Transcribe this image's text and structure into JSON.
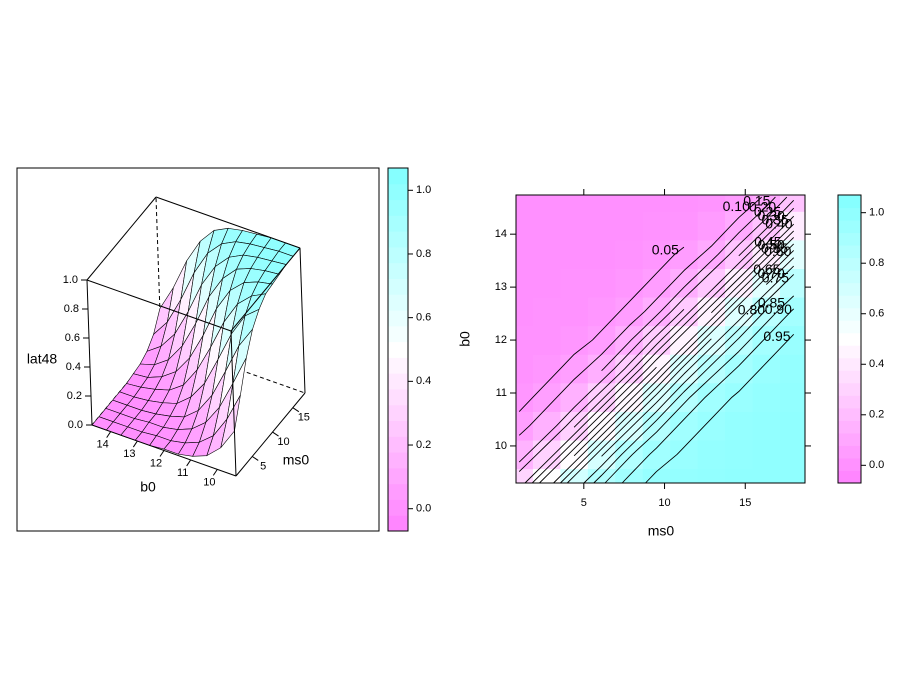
{
  "chart_data": [
    {
      "type": "wireframe",
      "xlabel": "ms0",
      "ylabel": "b0",
      "zlabel": "lat48",
      "x": [
        1,
        2.7,
        4.4,
        6.1,
        7.8,
        9.5,
        11.2,
        12.9,
        14.6,
        16.3,
        18
      ],
      "y": [
        9.3,
        9.84,
        10.38,
        10.92,
        11.46,
        12,
        12.54,
        13.08,
        13.62,
        14.16,
        14.7
      ],
      "z": [
        [
          0.31,
          0.5,
          0.7,
          0.84,
          0.92,
          0.97,
          0.98,
          0.99,
          1.0,
          1.0,
          1.0
        ],
        [
          0.16,
          0.3,
          0.49,
          0.69,
          0.84,
          0.92,
          0.96,
          0.98,
          0.99,
          1.0,
          1.0
        ],
        [
          0.07,
          0.15,
          0.29,
          0.48,
          0.68,
          0.83,
          0.92,
          0.96,
          0.98,
          0.99,
          1.0
        ],
        [
          0.03,
          0.07,
          0.15,
          0.28,
          0.47,
          0.67,
          0.83,
          0.92,
          0.96,
          0.98,
          0.99
        ],
        [
          0.01,
          0.03,
          0.07,
          0.14,
          0.27,
          0.46,
          0.67,
          0.82,
          0.91,
          0.96,
          0.98
        ],
        [
          0.01,
          0.01,
          0.03,
          0.06,
          0.14,
          0.27,
          0.45,
          0.66,
          0.81,
          0.91,
          0.96
        ],
        [
          0.0,
          0.01,
          0.01,
          0.03,
          0.06,
          0.13,
          0.26,
          0.44,
          0.65,
          0.81,
          0.91
        ],
        [
          0.0,
          0.0,
          0.01,
          0.01,
          0.03,
          0.06,
          0.13,
          0.25,
          0.43,
          0.64,
          0.8
        ],
        [
          0.0,
          0.0,
          0.0,
          0.0,
          0.01,
          0.03,
          0.06,
          0.12,
          0.24,
          0.42,
          0.63
        ],
        [
          0.0,
          0.0,
          0.0,
          0.0,
          0.0,
          0.01,
          0.02,
          0.05,
          0.12,
          0.23,
          0.41
        ],
        [
          0.0,
          0.0,
          0.0,
          0.0,
          0.0,
          0.0,
          0.01,
          0.02,
          0.05,
          0.11,
          0.23
        ]
      ],
      "xlim": [
        1,
        18
      ],
      "ylim": [
        9.3,
        14.7
      ],
      "zlim": [
        0,
        1
      ],
      "xticks": [
        5,
        10,
        15
      ],
      "yticks": [
        10,
        11,
        12,
        13,
        14
      ],
      "zticks": [
        {
          "value": 0,
          "label": "0.0"
        },
        0.2,
        0.4,
        0.6,
        0.8,
        {
          "value": 1,
          "label": "1.0"
        }
      ],
      "colors": [
        "#ff80ff",
        "#ffffff",
        "#80ffff"
      ],
      "colorkey": {
        "lim": [
          -0.07,
          1.07
        ],
        "ticks": [
          {
            "value": 0,
            "label": "0.0"
          },
          0.2,
          0.4,
          0.6,
          0.8,
          {
            "value": 1,
            "label": "1.0"
          }
        ]
      }
    },
    {
      "type": "contour",
      "xlabel": "ms0",
      "ylabel": "b0",
      "xlim": [
        0.8,
        18.7
      ],
      "ylim": [
        9.3,
        14.74
      ],
      "xticks": [
        5,
        10,
        15
      ],
      "yticks": [
        10,
        11,
        12,
        13,
        14
      ],
      "levels": [
        0.05,
        {
          "value": 0.1,
          "label": "0.10"
        },
        0.15,
        {
          "value": 0.2,
          "label": "0.20"
        },
        0.25,
        {
          "value": 0.3,
          "label": "0.30"
        },
        0.35,
        {
          "value": 0.4,
          "label": "0.40"
        },
        0.45,
        {
          "value": 0.5,
          "label": "0.50"
        },
        0.55,
        {
          "value": 0.6,
          "label": "0.60"
        },
        0.65,
        {
          "value": 0.7,
          "label": "0.70"
        },
        0.75,
        {
          "value": 0.8,
          "label": "0.80"
        },
        0.85,
        {
          "value": 0.9,
          "label": "0.90"
        },
        0.95
      ],
      "colors": [
        "#ff80ff",
        "#ffffff",
        "#80ffff"
      ],
      "colorkey": {
        "lim": [
          -0.07,
          1.07
        ],
        "ticks": [
          {
            "value": 0,
            "label": "0.0"
          },
          0.2,
          0.4,
          0.6,
          0.8,
          {
            "value": 1,
            "label": "1.0"
          }
        ]
      }
    }
  ]
}
